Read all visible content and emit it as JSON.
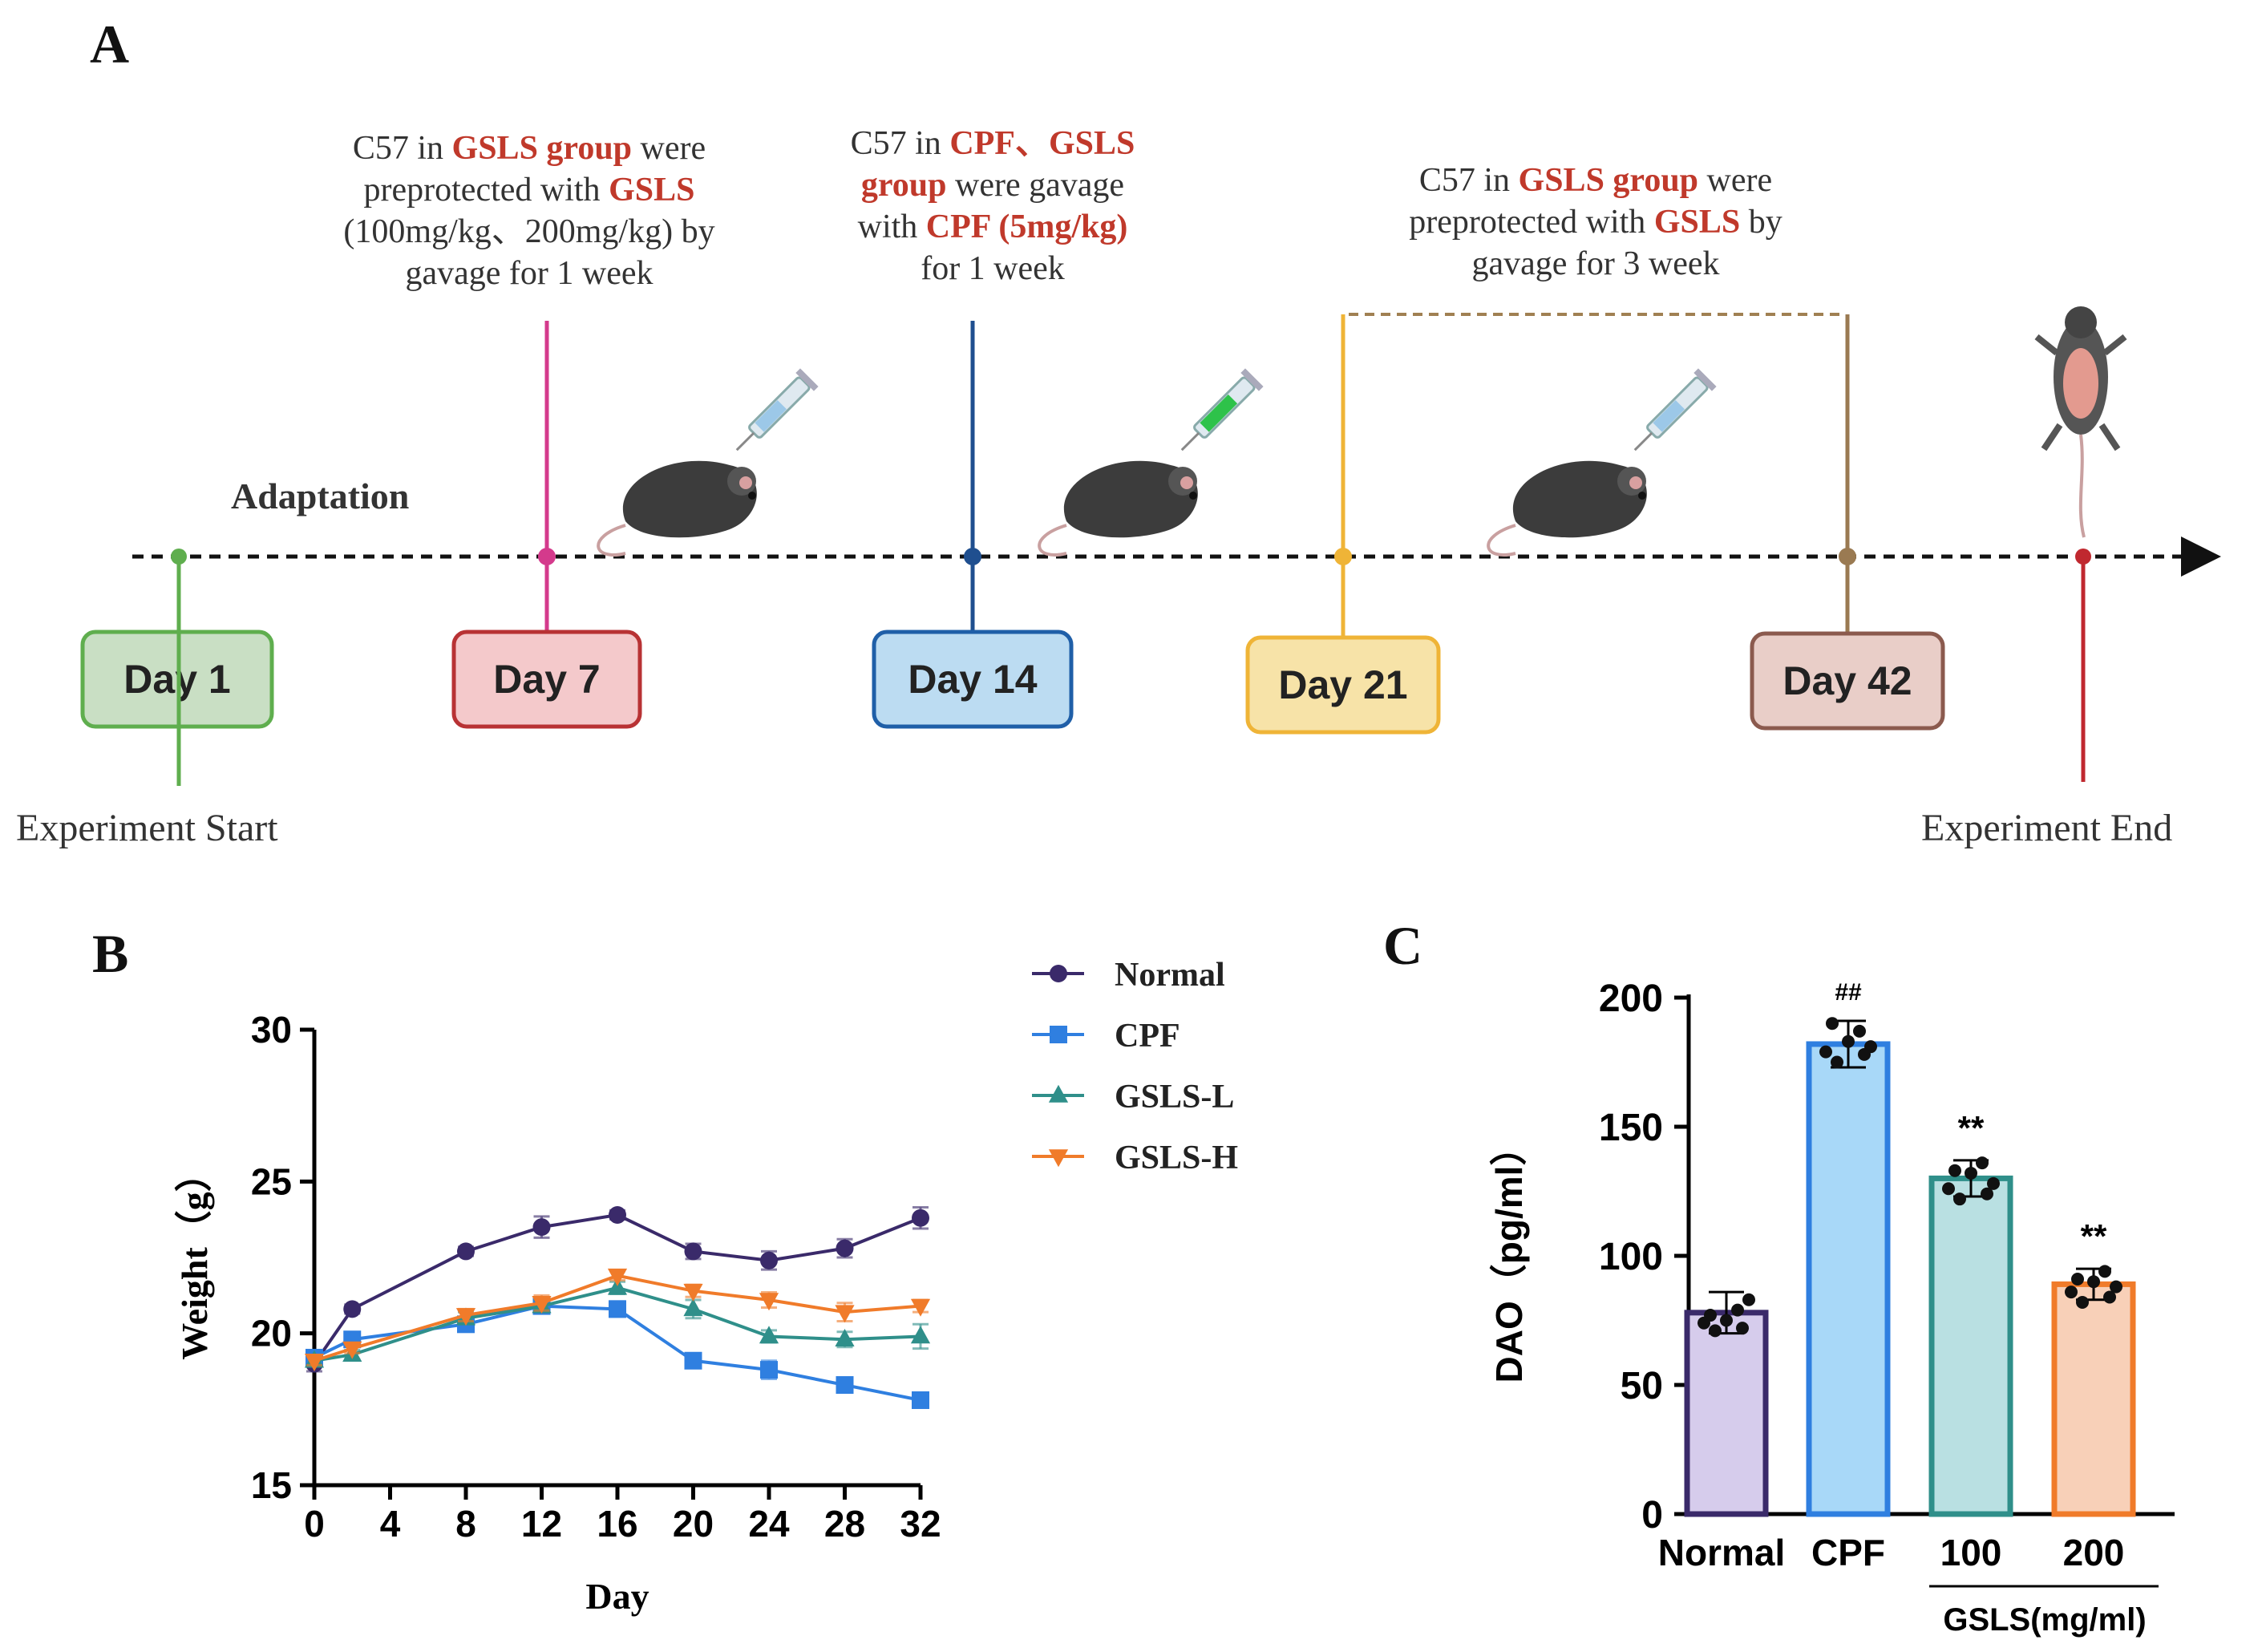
{
  "panel_a": {
    "label": "A",
    "adaptation": "Adaptation",
    "start_label": "Experiment Start",
    "end_label": "Experiment End",
    "days": [
      {
        "label": "Day 1",
        "fill": "#c9dfc4",
        "stroke": "#5fae4e",
        "line": "#5fae4e"
      },
      {
        "label": "Day 7",
        "fill": "#f4c9cb",
        "stroke": "#b83234",
        "line": "#d43a8c"
      },
      {
        "label": "Day 14",
        "fill": "#bcdcf2",
        "stroke": "#1f5fa8",
        "line": "#1f4f8f"
      },
      {
        "label": "Day 21",
        "fill": "#f7e3a8",
        "stroke": "#efb437",
        "line": "#efb437"
      },
      {
        "label": "Day 42",
        "fill": "#e9cec8",
        "stroke": "#8b5a4e",
        "line": "#9a7a52"
      }
    ],
    "notes": [
      {
        "lines": [
          [
            {
              "t": "C57 in "
            },
            {
              "t": "GSLS group",
              "r": true
            },
            {
              "t": " were"
            }
          ],
          [
            {
              "t": "preprotected with "
            },
            {
              "t": "GSLS",
              "r": true
            }
          ],
          [
            {
              "t": "(100mg/kg、200mg/kg) by"
            }
          ],
          [
            {
              "t": "gavage for 1 week"
            }
          ]
        ]
      },
      {
        "lines": [
          [
            {
              "t": "C57 in "
            },
            {
              "t": "CPF、GSLS",
              "r": true
            }
          ],
          [
            {
              "t": "group",
              "r": true
            },
            {
              "t": " were gavage"
            }
          ],
          [
            {
              "t": "with "
            },
            {
              "t": "CPF (5mg/kg)",
              "r": true
            }
          ],
          [
            {
              "t": "for 1 week"
            }
          ]
        ]
      },
      {
        "lines": [
          [
            {
              "t": "C57 in "
            },
            {
              "t": "GSLS group",
              "r": true
            },
            {
              "t": " were"
            }
          ],
          [
            {
              "t": "preprotected with "
            },
            {
              "t": "GSLS",
              "r": true
            },
            {
              "t": " by"
            }
          ],
          [
            {
              "t": "gavage for 3 week"
            }
          ]
        ]
      }
    ],
    "colors": {
      "red_text": "#c0392b",
      "dark_text": "#333333",
      "timeline": "#111111",
      "end_marker": "#c0282f"
    }
  },
  "chart_data": [
    {
      "panel": "B",
      "type": "line",
      "xlabel": "Day",
      "ylabel": "Weight（g）",
      "x": [
        0,
        2,
        8,
        12,
        16,
        20,
        24,
        28,
        32
      ],
      "xticks": [
        "0",
        "4",
        "8",
        "12",
        "16",
        "20",
        "24",
        "28",
        "32"
      ],
      "xlim": [
        0,
        32
      ],
      "ylim": [
        15,
        30
      ],
      "yticks": [
        "15",
        "20",
        "25",
        "30"
      ],
      "legend_position": "top-right",
      "series": [
        {
          "name": "Normal",
          "color": "#3a2a6a",
          "marker": "circle",
          "values": [
            19.0,
            20.8,
            22.7,
            23.5,
            23.9,
            22.7,
            22.4,
            22.8,
            23.8
          ],
          "err": [
            0.25,
            0.15,
            0.15,
            0.35,
            0.15,
            0.25,
            0.3,
            0.3,
            0.35
          ]
        },
        {
          "name": "CPF",
          "color": "#2f7fe0",
          "marker": "square",
          "values": [
            19.2,
            19.8,
            20.3,
            20.9,
            20.8,
            19.1,
            18.8,
            18.3,
            17.8
          ],
          "err": [
            0.2,
            0.15,
            0.2,
            0.2,
            0.25,
            0.2,
            0.3,
            0.15,
            0.15
          ]
        },
        {
          "name": "GSLS-L",
          "color": "#2f8f8a",
          "marker": "triangle-up",
          "values": [
            19.1,
            19.3,
            20.5,
            20.9,
            21.5,
            20.8,
            19.9,
            19.8,
            19.9
          ],
          "err": [
            0.15,
            0.15,
            0.2,
            0.2,
            0.2,
            0.3,
            0.2,
            0.25,
            0.4
          ]
        },
        {
          "name": "GSLS-H",
          "color": "#f07b2a",
          "marker": "triangle-down",
          "values": [
            19.1,
            19.5,
            20.6,
            21.0,
            21.9,
            21.4,
            21.1,
            20.7,
            20.9
          ],
          "err": [
            0.15,
            0.15,
            0.2,
            0.25,
            0.15,
            0.2,
            0.25,
            0.3,
            0.2
          ]
        }
      ]
    },
    {
      "panel": "C",
      "type": "bar",
      "ylabel": "DAO（pg/ml）",
      "ylim": [
        0,
        200
      ],
      "yticks": [
        "0",
        "50",
        "100",
        "150",
        "200"
      ],
      "categories": [
        "Normal",
        "CPF",
        "100",
        "200"
      ],
      "group_label": "GSLS(mg/ml)",
      "values": [
        78,
        182,
        130,
        89
      ],
      "err": [
        8,
        9,
        7,
        6
      ],
      "annotations": [
        "",
        "##",
        "**",
        "**"
      ],
      "bar_fill": [
        "#d6ccec",
        "#a8d8f8",
        "#b9e0e2",
        "#f8d0b8"
      ],
      "bar_stroke": [
        "#3a2a6a",
        "#2f7fe0",
        "#2f8f8a",
        "#f07b2a"
      ],
      "points": [
        [
          74,
          71,
          75,
          79,
          83,
          77,
          72
        ],
        [
          179,
          175,
          183,
          187,
          181,
          190,
          178
        ],
        [
          126,
          122,
          132,
          136,
          128,
          133,
          124
        ],
        [
          86,
          82,
          90,
          94,
          88,
          91,
          84
        ]
      ]
    }
  ]
}
